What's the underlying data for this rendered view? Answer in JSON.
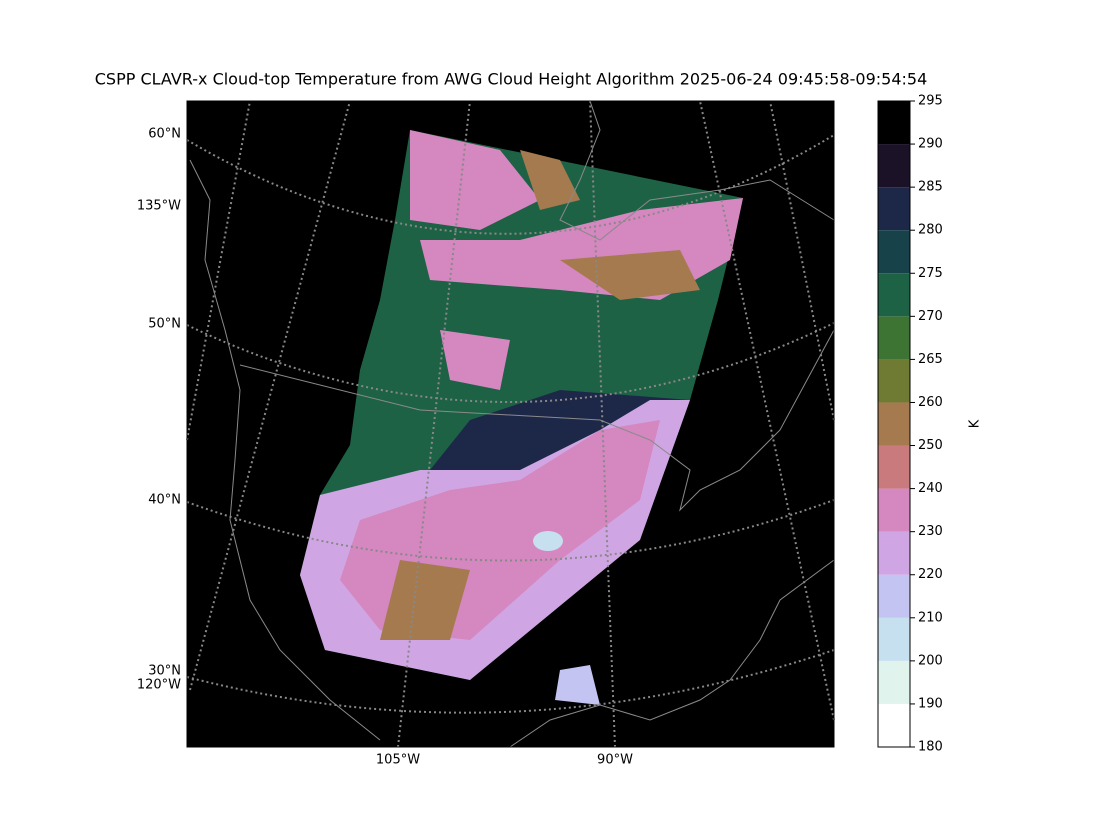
{
  "title": "CSPP CLAVR-x Cloud-top Temperature from AWG Cloud Height Algorithm 2025-06-24 09:45:58-09:54:54",
  "map": {
    "lat_labels": [
      "60°N",
      "50°N",
      "40°N",
      "30°N"
    ],
    "lon_labels_left": [
      "135°W",
      "120°W"
    ],
    "lon_labels_bottom": [
      "105°W",
      "90°W"
    ]
  },
  "colorbar": {
    "label": "K",
    "bounds": [
      180,
      190,
      200,
      210,
      220,
      230,
      240,
      250,
      260,
      265,
      270,
      275,
      280,
      285,
      290,
      295
    ],
    "colors": [
      "#ffffff",
      "#e0f3ed",
      "#c6e0f0",
      "#c4c4f2",
      "#cfa6e3",
      "#d587c0",
      "#c87a7d",
      "#a67a4f",
      "#6f7a33",
      "#3d7333",
      "#1e6246",
      "#17424a",
      "#1d2849",
      "#1c1228",
      "#000000"
    ]
  }
}
